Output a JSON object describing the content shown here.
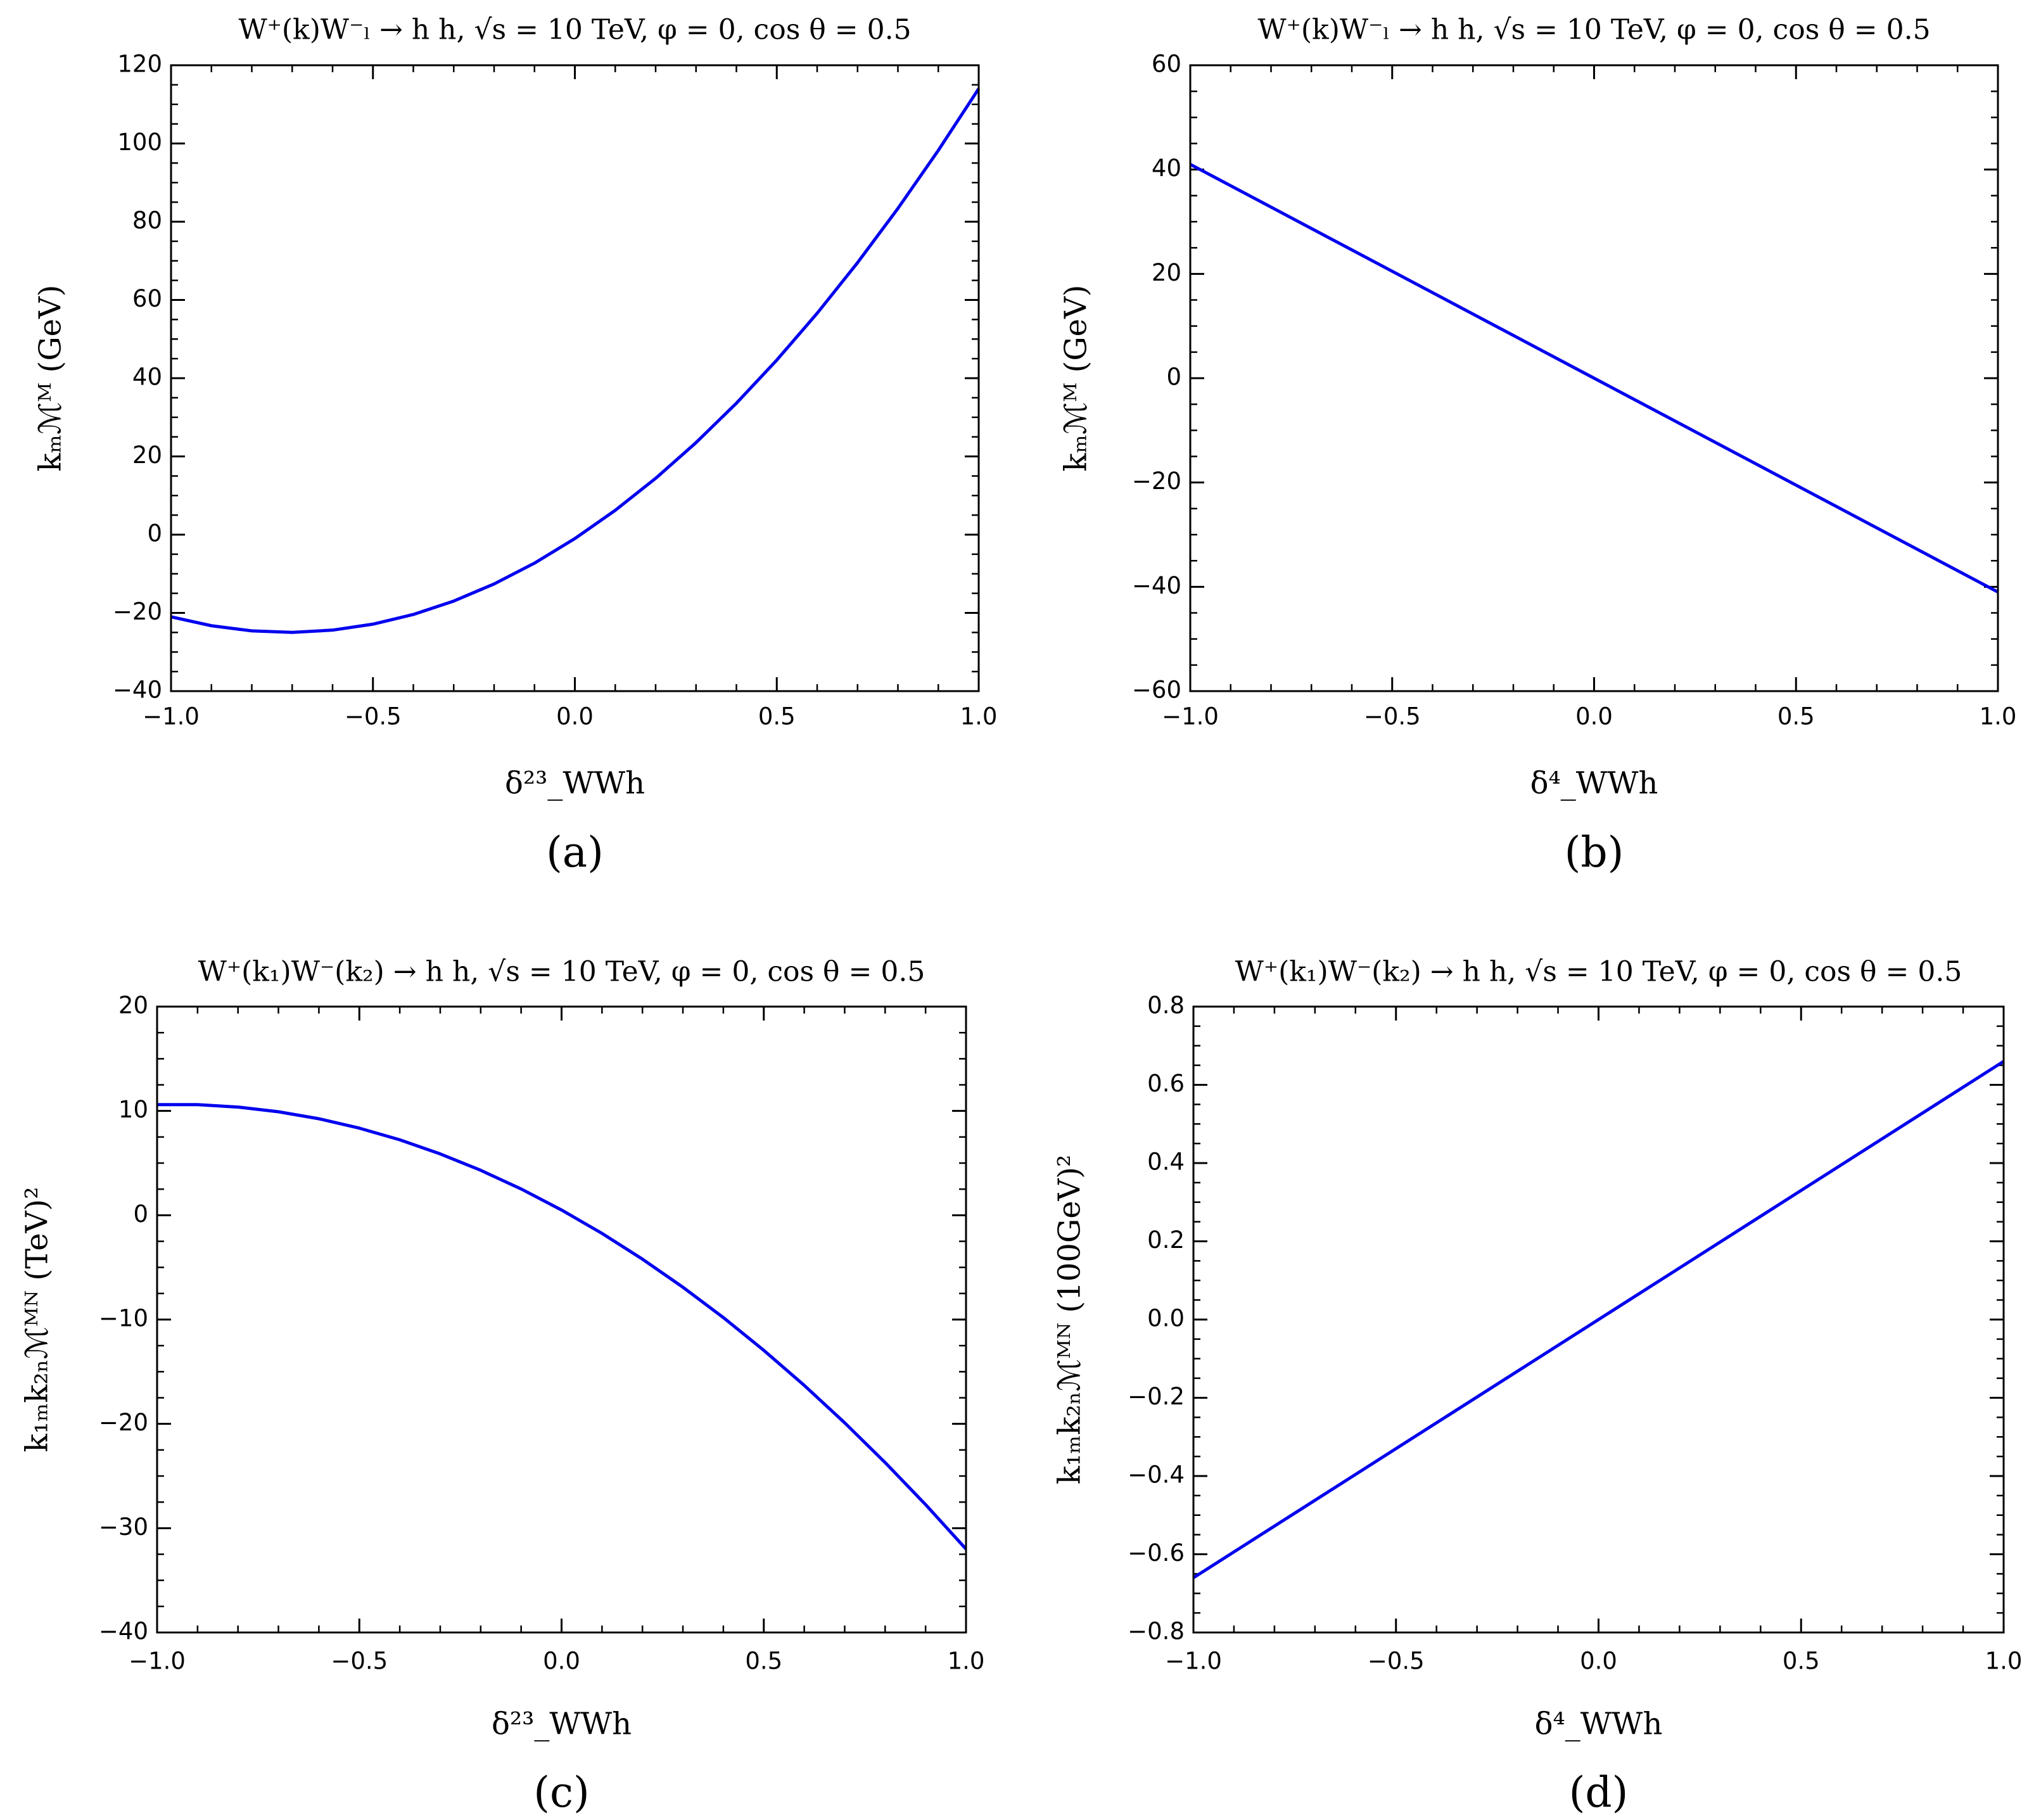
{
  "chart_data": [
    {
      "type": "line",
      "title": "W⁺(k)W⁻ₗ → h h,  √s = 10 TeV,  φ = 0, cos θ = 0.5",
      "panel_label": "(a)",
      "xlabel": "δ²³_WWh",
      "ylabel": "kₘℳᴹ (GeV)",
      "x": [
        -1,
        -0.9,
        -0.8,
        -0.7,
        -0.6,
        -0.5,
        -0.4,
        -0.3,
        -0.2,
        -0.1,
        0,
        0.1,
        0.2,
        0.3,
        0.4,
        0.5,
        0.6,
        0.7,
        0.8,
        0.9,
        1
      ],
      "values": [
        -21,
        -23.28,
        -24.6,
        -24.98,
        -24.4,
        -22.88,
        -20.4,
        -16.98,
        -12.6,
        -7.28,
        -1,
        6.23,
        14.4,
        23.53,
        33.6,
        44.63,
        56.6,
        69.53,
        83.4,
        98.23,
        114
      ],
      "color": "#0000ee",
      "xlim": [
        -1,
        1
      ],
      "ylim": [
        -40,
        120
      ],
      "xticks": [
        {
          "value": -1,
          "label": "−1.0"
        },
        {
          "value": -0.5,
          "label": "−0.5"
        },
        {
          "value": 0,
          "label": "0.0"
        },
        0.5,
        {
          "value": 1,
          "label": "1.0"
        }
      ],
      "yticks": [
        {
          "value": -40,
          "label": "−40"
        },
        {
          "value": -20,
          "label": "−20"
        },
        0,
        20,
        40,
        60,
        80,
        100,
        120
      ]
    },
    {
      "type": "line",
      "title": "W⁺(k)W⁻ₗ → h h,  √s = 10 TeV,  φ = 0, cos θ = 0.5",
      "panel_label": "(b)",
      "xlabel": "δ⁴_WWh",
      "ylabel": "kₘℳᴹ (GeV)",
      "x": [
        -1,
        0,
        1
      ],
      "values": [
        41,
        0,
        -41
      ],
      "color": "#0000ee",
      "xlim": [
        -1,
        1
      ],
      "ylim": [
        -60,
        60
      ],
      "xticks": [
        {
          "value": -1,
          "label": "−1.0"
        },
        {
          "value": -0.5,
          "label": "−0.5"
        },
        {
          "value": 0,
          "label": "0.0"
        },
        0.5,
        {
          "value": 1,
          "label": "1.0"
        }
      ],
      "yticks": [
        {
          "value": -60,
          "label": "−60"
        },
        {
          "value": -40,
          "label": "−40"
        },
        {
          "value": -20,
          "label": "−20"
        },
        0,
        20,
        40,
        60
      ]
    },
    {
      "type": "line",
      "title": "W⁺(k₁)W⁻(k₂) → h h,  √s = 10 TeV,  φ = 0, cos θ = 0.5",
      "panel_label": "(c)",
      "xlabel": "δ²³_WWh",
      "ylabel": "k₁ₘk₂ₙℳᴹᴺ (TeV)²",
      "x": [
        -1,
        -0.9,
        -0.8,
        -0.7,
        -0.6,
        -0.5,
        -0.4,
        -0.3,
        -0.2,
        -0.1,
        0,
        0.1,
        0.2,
        0.3,
        0.4,
        0.5,
        0.6,
        0.7,
        0.8,
        0.9,
        1
      ],
      "values": [
        10.6,
        10.6,
        10.37,
        9.92,
        9.25,
        8.35,
        7.23,
        5.88,
        4.31,
        2.52,
        0.5,
        -1.74,
        -4.21,
        -6.9,
        -9.81,
        -12.95,
        -16.31,
        -19.9,
        -23.71,
        -27.74,
        -32
      ],
      "color": "#0000ee",
      "xlim": [
        -1,
        1
      ],
      "ylim": [
        -40,
        20
      ],
      "xticks": [
        {
          "value": -1,
          "label": "−1.0"
        },
        {
          "value": -0.5,
          "label": "−0.5"
        },
        {
          "value": 0,
          "label": "0.0"
        },
        0.5,
        {
          "value": 1,
          "label": "1.0"
        }
      ],
      "yticks": [
        {
          "value": -40,
          "label": "−40"
        },
        {
          "value": -30,
          "label": "−30"
        },
        {
          "value": -20,
          "label": "−20"
        },
        {
          "value": -10,
          "label": "−10"
        },
        0,
        10,
        20
      ]
    },
    {
      "type": "line",
      "title": "W⁺(k₁)W⁻(k₂) → h h,  √s = 10 TeV,  φ = 0, cos θ = 0.5",
      "panel_label": "(d)",
      "xlabel": "δ⁴_WWh",
      "ylabel": "k₁ₘk₂ₙℳᴹᴺ (100GeV)²",
      "x": [
        -1,
        0,
        1
      ],
      "values": [
        -0.66,
        0,
        0.66
      ],
      "color": "#0000ee",
      "xlim": [
        -1,
        1
      ],
      "ylim": [
        -0.8,
        0.8
      ],
      "xticks": [
        {
          "value": -1,
          "label": "−1.0"
        },
        {
          "value": -0.5,
          "label": "−0.5"
        },
        {
          "value": 0,
          "label": "0.0"
        },
        0.5,
        {
          "value": 1,
          "label": "1.0"
        }
      ],
      "yticks": [
        {
          "value": -0.8,
          "label": "−0.8"
        },
        {
          "value": -0.6,
          "label": "−0.6"
        },
        {
          "value": -0.4,
          "label": "−0.4"
        },
        {
          "value": -0.2,
          "label": "−0.2"
        },
        {
          "value": 0,
          "label": "0.0"
        },
        0.2,
        0.4,
        0.6,
        0.8
      ]
    }
  ]
}
